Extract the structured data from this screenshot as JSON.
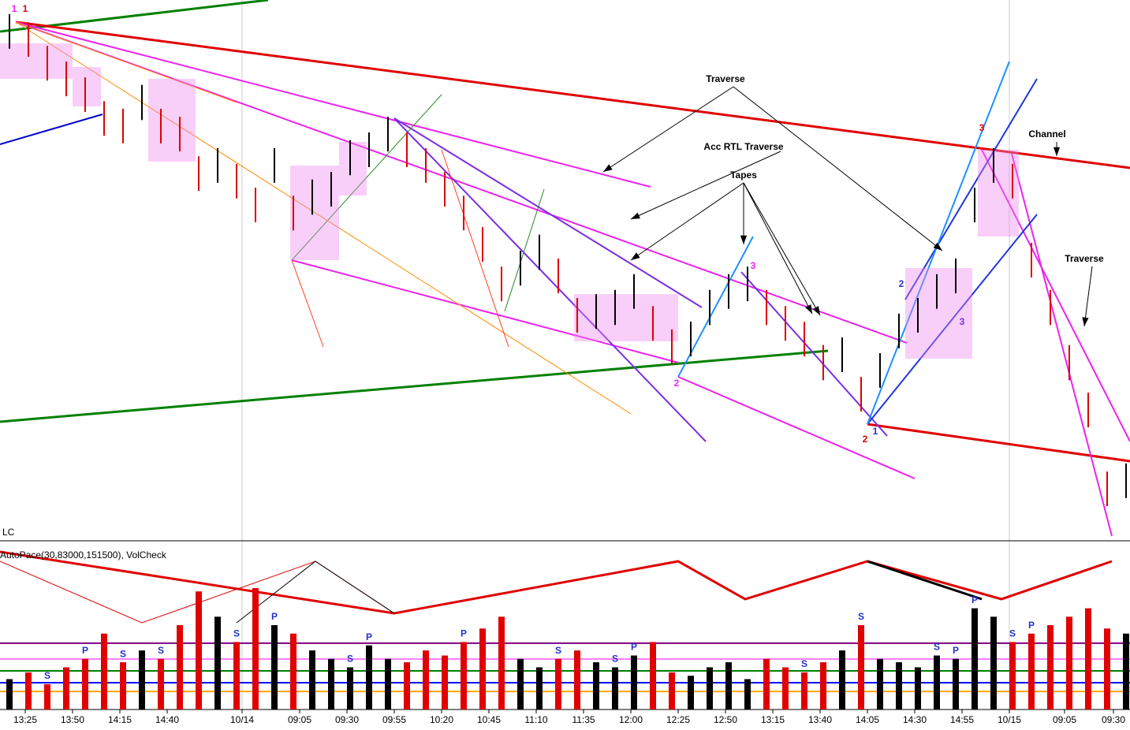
{
  "chart_data": [
    {
      "type": "range_bar",
      "up_color": "#000000",
      "down_color": "#e00000",
      "high": [
        97.4,
        95.9,
        91.5,
        88.6,
        85.7,
        81.3,
        79.9,
        84.3,
        79.9,
        78.4,
        71.1,
        72.6,
        69.7,
        65.3,
        72.6,
        63.8,
        66.8,
        68.2,
        74.1,
        75.5,
        78.4,
        75.5,
        72.6,
        68.2,
        63.8,
        58.0,
        50.7,
        53.6,
        56.6,
        52.2,
        44.9,
        45.6,
        46.4,
        49.3,
        43.4,
        39.1,
        40.5,
        46.4,
        49.3,
        50.7,
        46.4,
        43.4,
        40.5,
        36.2,
        37.6,
        30.3,
        34.7,
        42.0,
        44.9,
        49.3,
        52.2,
        65.3,
        72.6,
        69.7,
        55.1,
        46.4,
        36.2,
        27.4,
        12.8,
        14.3
      ],
      "low": [
        91.0,
        89.5,
        85.1,
        82.2,
        79.3,
        74.9,
        73.5,
        77.8,
        73.5,
        72.0,
        64.7,
        66.2,
        63.3,
        58.9,
        66.2,
        57.4,
        60.3,
        61.8,
        67.6,
        69.1,
        72.0,
        69.1,
        66.2,
        61.8,
        57.4,
        51.6,
        44.3,
        47.2,
        50.1,
        45.8,
        38.5,
        39.2,
        39.9,
        42.9,
        37.0,
        32.7,
        34.1,
        39.9,
        42.9,
        44.3,
        39.9,
        37.0,
        34.1,
        29.7,
        31.2,
        23.9,
        28.3,
        35.6,
        38.5,
        42.9,
        45.8,
        58.9,
        66.2,
        63.3,
        48.7,
        39.9,
        29.7,
        21.0,
        6.4,
        7.9
      ],
      "ylim": [
        0,
        100
      ],
      "xtick_labels": [
        "13:25",
        "13:50",
        "14:15",
        "14:40",
        "10/14",
        "09:05",
        "09:30",
        "09:55",
        "10:20",
        "10:45",
        "11:10",
        "11:35",
        "12:00",
        "12:25",
        "12:50",
        "13:15",
        "13:40",
        "14:05",
        "14:30",
        "14:55",
        "10/15",
        "09:05",
        "09:30"
      ],
      "annotations": [
        "Traverse",
        "Acc RTL Traverse",
        "Tapes",
        "Channel",
        "Traverse"
      ],
      "pivot_labels": [
        "1",
        "1",
        "2",
        "3",
        "1",
        "2",
        "2",
        "3",
        "3"
      ],
      "corner_label": "LC"
    },
    {
      "type": "bar",
      "title": "AutoPace(30,83000,151500), VolCheck",
      "values": [
        18,
        22,
        15,
        25,
        30,
        45,
        28,
        35,
        30,
        50,
        70,
        55,
        40,
        72,
        50,
        45,
        35,
        30,
        25,
        38,
        30,
        28,
        35,
        32,
        40,
        48,
        55,
        30,
        25,
        30,
        35,
        28,
        25,
        32,
        40,
        22,
        20,
        25,
        28,
        18,
        30,
        25,
        22,
        28,
        35,
        50,
        30,
        28,
        25,
        32,
        30,
        60,
        55,
        40,
        45,
        50,
        55,
        60,
        48,
        45
      ],
      "signal_labels": [
        null,
        null,
        "S",
        null,
        "P",
        null,
        "S",
        null,
        "S",
        null,
        null,
        null,
        "S",
        null,
        "P",
        null,
        null,
        null,
        "S",
        "P",
        null,
        null,
        null,
        null,
        "P",
        null,
        null,
        null,
        null,
        "S",
        null,
        null,
        "S",
        "P",
        null,
        null,
        null,
        null,
        null,
        null,
        null,
        null,
        "S",
        null,
        null,
        "S",
        null,
        null,
        null,
        "S",
        "P",
        "P",
        null,
        "S",
        "P",
        null,
        null,
        null,
        null,
        null
      ],
      "ylim": [
        0,
        100
      ],
      "levels": [
        {
          "value": 39.3,
          "color": "#800080"
        },
        {
          "value": 29.9,
          "color": "#ff80ff"
        },
        {
          "value": 22.9,
          "color": "#008000"
        },
        {
          "value": 15.9,
          "color": "#0000ff"
        },
        {
          "value": 10.7,
          "color": "#ffa500"
        }
      ]
    }
  ]
}
